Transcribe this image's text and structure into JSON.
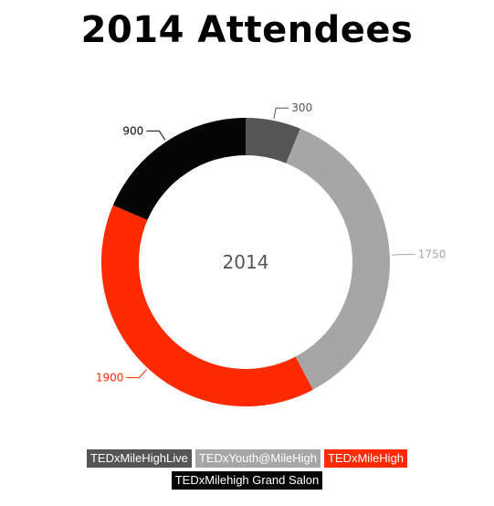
{
  "chart_data": {
    "type": "pie",
    "title": "2014 Attendees",
    "center_label": "2014",
    "series": [
      {
        "name": "TEDxMileHighLive",
        "value": 300,
        "label": "300",
        "color": "#555555"
      },
      {
        "name": "TEDxYouth@MileHigh",
        "value": 1750,
        "label": "1750",
        "color": "#a6a6a6"
      },
      {
        "name": "TEDxMileHigh",
        "value": 1900,
        "label": "1900",
        "color": "#ff2a00"
      },
      {
        "name": "TEDxMilehigh Grand Salon",
        "value": 900,
        "label": "900",
        "color": "#050505"
      }
    ],
    "legend_position": "bottom"
  }
}
